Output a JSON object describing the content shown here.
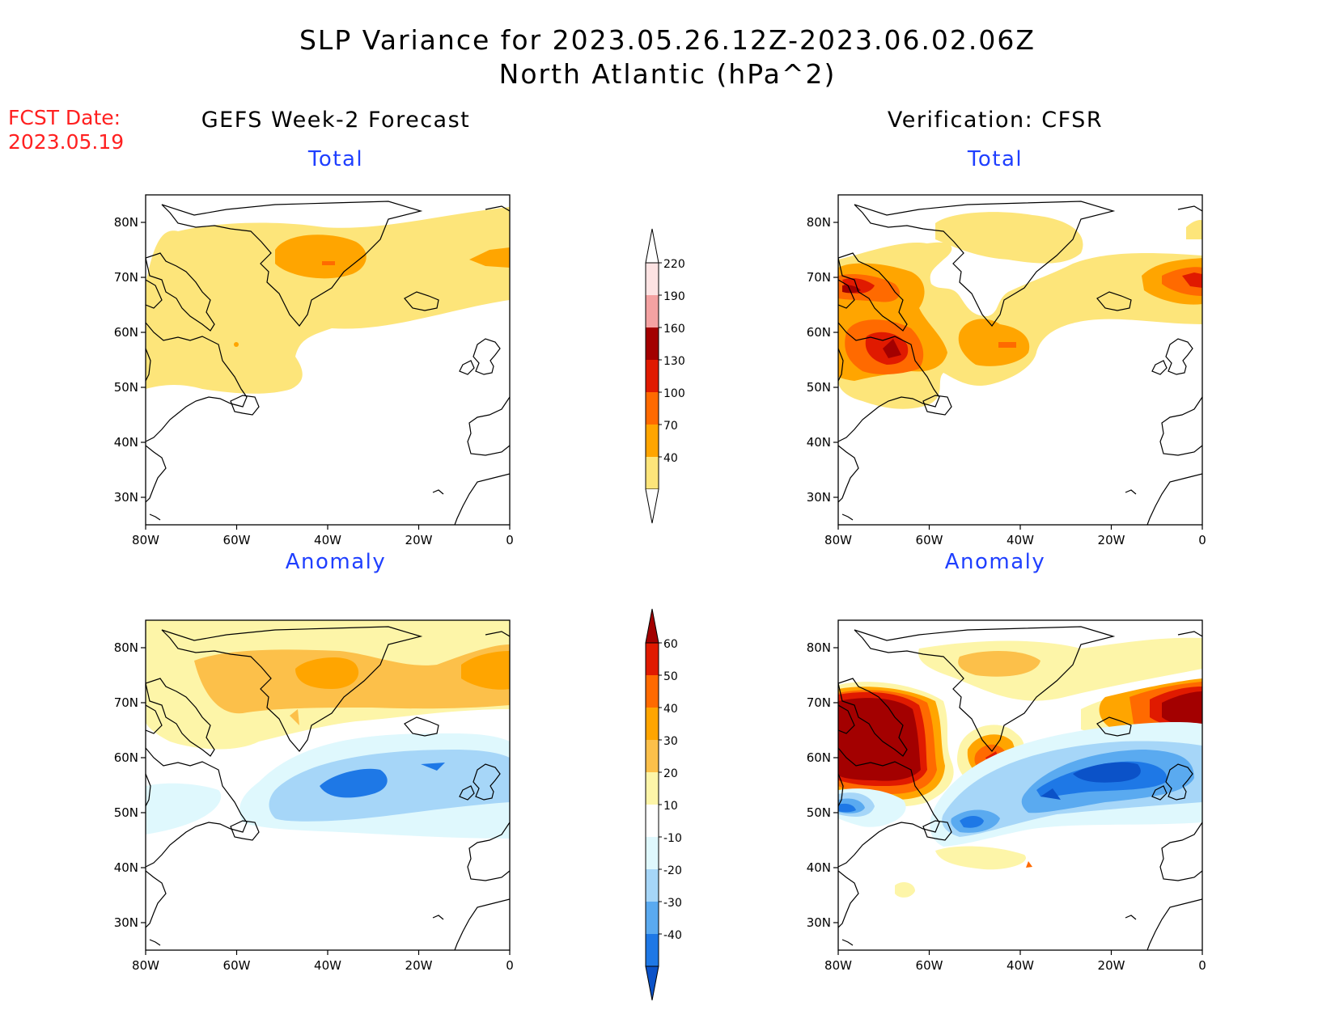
{
  "title": {
    "line1": "SLP Variance for 2023.05.26.12Z-2023.06.02.06Z",
    "line2": "North Atlantic (hPa^2)"
  },
  "fcst": {
    "label": "FCST Date:",
    "date": "2023.05.19"
  },
  "left_column": {
    "header": "GEFS Week-2 Forecast"
  },
  "right_column": {
    "header": "Verification: CFSR"
  },
  "panels": {
    "top_left": {
      "subtitle": "Total"
    },
    "top_right": {
      "subtitle": "Total"
    },
    "bottom_left": {
      "subtitle": "Anomaly"
    },
    "bottom_right": {
      "subtitle": "Anomaly"
    }
  },
  "axes": {
    "lat_ticks": [
      "80N",
      "70N",
      "60N",
      "50N",
      "40N",
      "30N"
    ],
    "lon_ticks": [
      "80W",
      "60W",
      "40W",
      "20W",
      "0"
    ],
    "lat_range": [
      25,
      85
    ],
    "lon_range": [
      -80,
      0
    ]
  },
  "colorbars": {
    "total": {
      "labels": [
        "220",
        "190",
        "160",
        "130",
        "100",
        "70",
        "40"
      ],
      "colors": [
        "#fde3e3",
        "#f4a2a2",
        "#a30000",
        "#e01a00",
        "#ff6a00",
        "#ffa500",
        "#fde57a"
      ]
    },
    "anomaly": {
      "labels": [
        "60",
        "50",
        "40",
        "30",
        "20",
        "10",
        "-10",
        "-20",
        "-30",
        "-40"
      ],
      "colors": [
        "#a30000",
        "#e01a00",
        "#ff6a00",
        "#ffa500",
        "#fcc04a",
        "#fdf5a8",
        "#ffffff",
        "#dff8fd",
        "#a6d6f8",
        "#5aaaf0",
        "#1e78e6",
        "#0b52c8"
      ]
    }
  }
}
